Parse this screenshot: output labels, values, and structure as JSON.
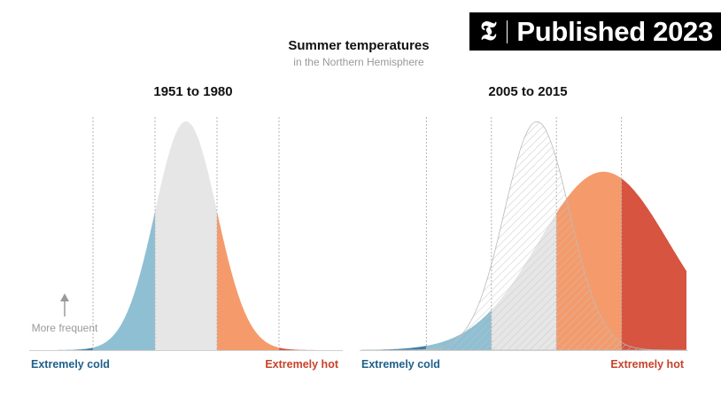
{
  "badge": {
    "logo": "𝕿",
    "label": "Published 2023"
  },
  "colors": {
    "cold": "#8fbfd2",
    "cold_dark": "#3f7fa3",
    "normal": "#e6e6e6",
    "warm": "#f59b6b",
    "hot": "#d65440",
    "label_cold": "#1f5f8b",
    "label_hot": "#c8412a",
    "muted": "#9a9a9a",
    "outline": "#bbbbbb"
  },
  "chart_data": {
    "type": "area",
    "title": "Summer temperatures",
    "subtitle": "in the Northern Hemisphere",
    "ylabel": "More frequent",
    "xlim": [
      -5,
      5
    ],
    "boundaries": [
      -3,
      -1,
      1,
      3
    ],
    "category_labels": {
      "cold": "Extremely cold",
      "hot": "Extremely hot"
    },
    "panels": [
      {
        "title": "1951 to 1980",
        "distribution": {
          "mean": 0,
          "sd": 1,
          "peak": 1.0
        }
      },
      {
        "title": "2005 to 2015",
        "distribution": {
          "mean": 2.45,
          "sd": 2.0,
          "peak": 0.78
        },
        "baseline_reference": {
          "mean": 0.4,
          "sd": 1.0,
          "peak": 1.0
        }
      }
    ]
  }
}
